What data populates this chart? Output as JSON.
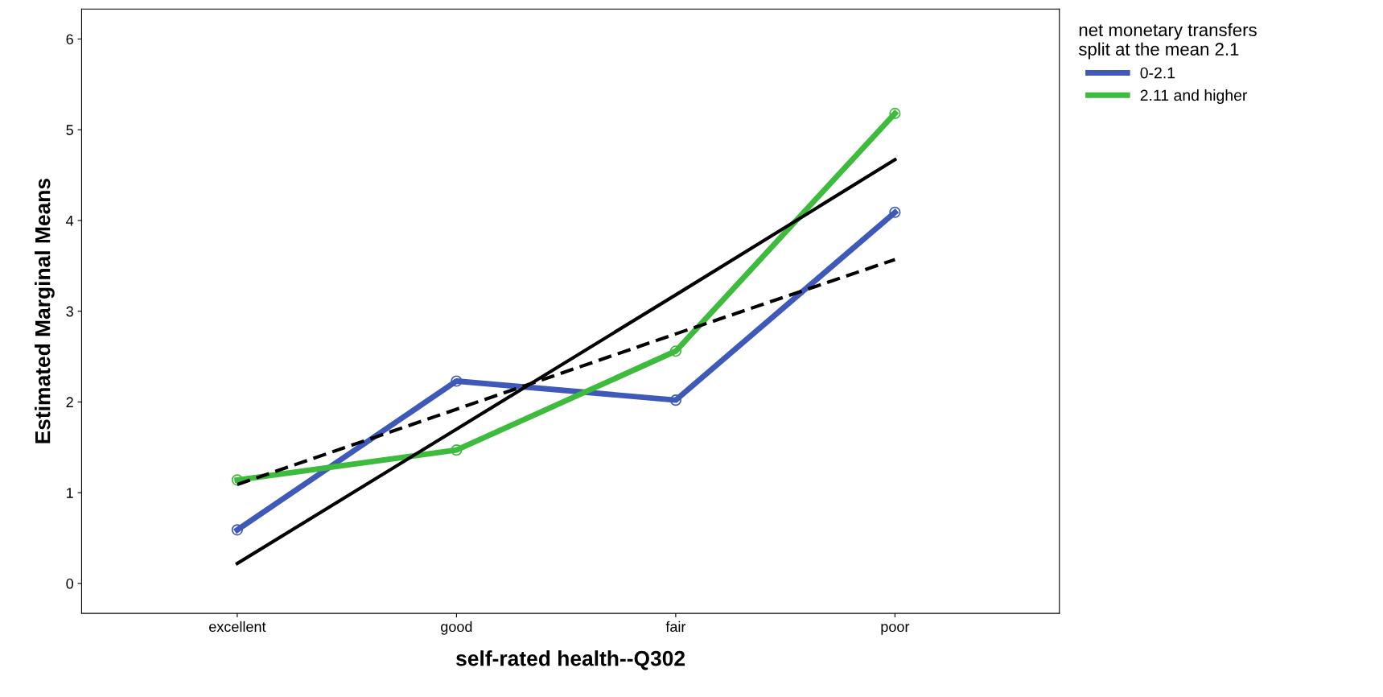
{
  "chart_data": {
    "type": "line",
    "xlabel": "self-rated health--Q302",
    "ylabel": "Estimated Marginal Means",
    "legend_title": "net monetary transfers\nsplit at the mean 2.1",
    "categories": [
      "excellent",
      "good",
      "fair",
      "poor"
    ],
    "ylim": [
      -0.33,
      6.33
    ],
    "yticks": [
      0,
      1,
      2,
      3,
      4,
      5,
      6
    ],
    "grid": false,
    "legend": "right",
    "marker": "circle",
    "series": [
      {
        "name": "0-2.1",
        "color": "#3e59b8",
        "values": [
          0.59,
          2.23,
          2.02,
          4.09
        ]
      },
      {
        "name": "2.11 and higher",
        "color": "#3dbb3d",
        "values": [
          1.14,
          1.47,
          2.56,
          5.18
        ]
      },
      {
        "type": "line",
        "color": "#000000",
        "line_style": "solid",
        "marker": "none",
        "values": [
          0.22,
          1.7,
          3.18,
          4.67
        ]
      },
      {
        "type": "line",
        "color": "#000000",
        "line_style": "dashed",
        "marker": "none",
        "values": [
          1.09,
          1.92,
          2.75,
          3.57
        ]
      }
    ]
  }
}
